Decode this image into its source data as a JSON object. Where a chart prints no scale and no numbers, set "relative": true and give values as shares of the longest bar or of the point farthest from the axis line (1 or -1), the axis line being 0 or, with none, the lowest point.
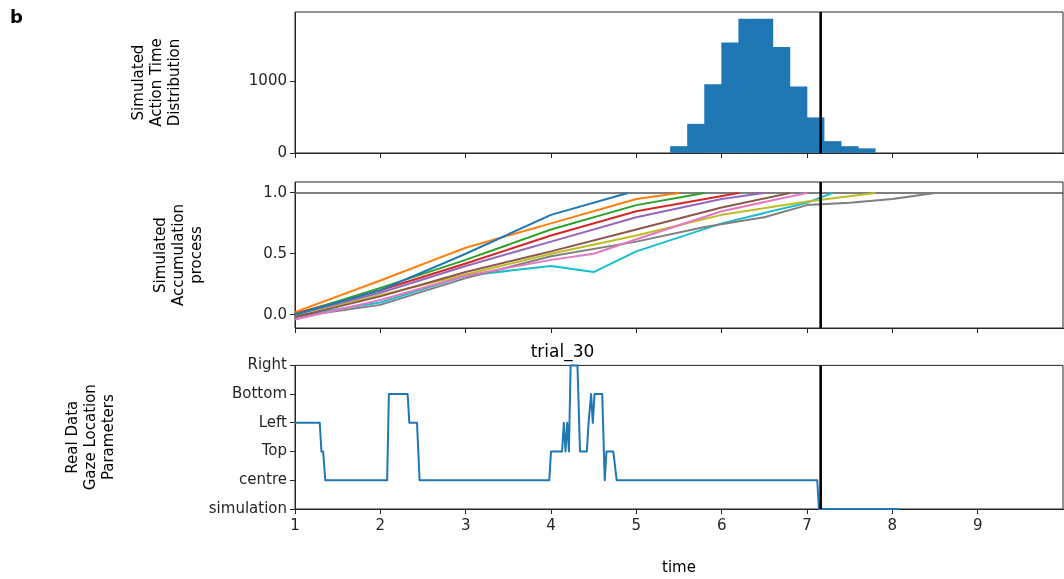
{
  "chart_data": [
    {
      "type": "histogram",
      "ylabel": "Simulated\nAction Time\nDistribution",
      "annotations": [
        "b"
      ],
      "color": "#1f77b4",
      "bins": [
        5.4,
        5.6,
        5.8,
        6.0,
        6.2,
        6.4,
        6.6,
        6.8,
        7.0,
        7.2,
        7.4,
        7.6,
        7.8
      ],
      "values": [
        90,
        400,
        950,
        1530,
        1860,
        1860,
        1470,
        920,
        490,
        160,
        90,
        60
      ],
      "xlim": [
        1,
        10
      ],
      "xticks": [
        1,
        2,
        3,
        4,
        5,
        6,
        7,
        8,
        9
      ],
      "ylim": [
        0,
        1960
      ],
      "yticks": [
        0,
        1000
      ],
      "tick_labels": "y",
      "ref_lines": [
        {
          "axis": "x",
          "value": 7.16,
          "color": "#000000"
        }
      ]
    },
    {
      "type": "line",
      "ylabel": "Simulated\nAccumulation\nprocess",
      "xlim": [
        1,
        10
      ],
      "xticks": [
        1,
        2,
        3,
        4,
        5,
        6,
        7,
        8,
        9
      ],
      "ylim": [
        -0.11,
        1.09
      ],
      "yticks": [
        {
          "value": 0,
          "label": "0.0"
        },
        {
          "value": 0.5,
          "label": "0.5"
        },
        {
          "value": 1,
          "label": "1.0"
        }
      ],
      "tick_labels": "y",
      "ref_lines": [
        {
          "axis": "x",
          "value": 7.16,
          "color": "#000000"
        },
        {
          "axis": "y",
          "value": 1,
          "color": "#7f7f7f"
        }
      ],
      "series": [
        {
          "color": "#1f77b4",
          "x": [
            1,
            2,
            3,
            4,
            4.9
          ],
          "values": [
            0,
            0.2,
            0.5,
            0.82,
            1
          ]
        },
        {
          "color": "#ff7f0e",
          "x": [
            1,
            2,
            3,
            4,
            5,
            5.5
          ],
          "values": [
            0.02,
            0.28,
            0.55,
            0.75,
            0.95,
            1
          ]
        },
        {
          "color": "#2ca02c",
          "x": [
            1,
            2,
            3,
            4,
            5,
            5.8
          ],
          "values": [
            0,
            0.22,
            0.45,
            0.7,
            0.9,
            1
          ]
        },
        {
          "color": "#d62728",
          "x": [
            1,
            2,
            3,
            4,
            5,
            6.2
          ],
          "values": [
            0.01,
            0.2,
            0.42,
            0.65,
            0.85,
            1
          ]
        },
        {
          "color": "#9467bd",
          "x": [
            1,
            2,
            3,
            4,
            5,
            6,
            6.5
          ],
          "values": [
            0,
            0.18,
            0.4,
            0.6,
            0.8,
            0.95,
            1
          ]
        },
        {
          "color": "#8c564b",
          "x": [
            1,
            2,
            3,
            4,
            5,
            6,
            6.8
          ],
          "values": [
            -0.02,
            0.15,
            0.35,
            0.52,
            0.7,
            0.88,
            1
          ]
        },
        {
          "color": "#e377c2",
          "x": [
            1,
            2,
            3,
            4,
            4.5,
            5,
            6,
            7
          ],
          "values": [
            -0.04,
            0.12,
            0.32,
            0.45,
            0.5,
            0.62,
            0.85,
            1
          ]
        },
        {
          "color": "#7f7f7f",
          "x": [
            1,
            2,
            3,
            4,
            5,
            5.8,
            6.5,
            7,
            7.5,
            8,
            8.5
          ],
          "values": [
            -0.02,
            0.08,
            0.3,
            0.48,
            0.6,
            0.72,
            0.8,
            0.9,
            0.92,
            0.95,
            1
          ]
        },
        {
          "color": "#bcbd22",
          "x": [
            1,
            2,
            3,
            4,
            5,
            6,
            7,
            7.8
          ],
          "values": [
            0,
            0.16,
            0.33,
            0.5,
            0.65,
            0.82,
            0.93,
            1
          ]
        },
        {
          "color": "#17becf",
          "x": [
            1,
            2,
            3,
            4,
            4.5,
            5,
            6,
            7,
            7.3
          ],
          "values": [
            -0.01,
            0.1,
            0.32,
            0.4,
            0.35,
            0.52,
            0.75,
            0.92,
            1
          ]
        }
      ]
    },
    {
      "type": "line",
      "title": "trial_30",
      "xlabel": "time",
      "ylabel": "Real Data\nGaze Location\nParameters",
      "xlim": [
        1,
        10
      ],
      "xticks": [
        1,
        2,
        3,
        4,
        5,
        6,
        7,
        8,
        9
      ],
      "relative": true,
      "y_categories": [
        "Right",
        "Bottom",
        "Left",
        "Top",
        "centre",
        "simulation"
      ],
      "ref_lines": [
        {
          "axis": "x",
          "value": 7.16,
          "color": "#000000"
        }
      ],
      "series": [
        {
          "color": "#1f77b4",
          "x": [
            1,
            1.29,
            1.31,
            1.33,
            1.355,
            2.08,
            2.1,
            2.32,
            2.34,
            2.43,
            2.46,
            3.98,
            4.0,
            4.13,
            4.15,
            4.17,
            4.19,
            4.21,
            4.23,
            4.31,
            4.34,
            4.42,
            4.44,
            4.47,
            4.49,
            4.51,
            4.6,
            4.63,
            4.65,
            4.73,
            4.77,
            7.12,
            7.14,
            8.08
          ],
          "values": [
            0.6,
            0.6,
            0.4,
            0.4,
            0.2,
            0.2,
            0.8,
            0.8,
            0.6,
            0.6,
            0.2,
            0.2,
            0.4,
            0.4,
            0.6,
            0.4,
            0.6,
            0.4,
            1,
            1,
            0.4,
            0.4,
            0.6,
            0.8,
            0.6,
            0.8,
            0.8,
            0.2,
            0.4,
            0.4,
            0.2,
            0.2,
            0,
            0
          ]
        }
      ]
    }
  ]
}
